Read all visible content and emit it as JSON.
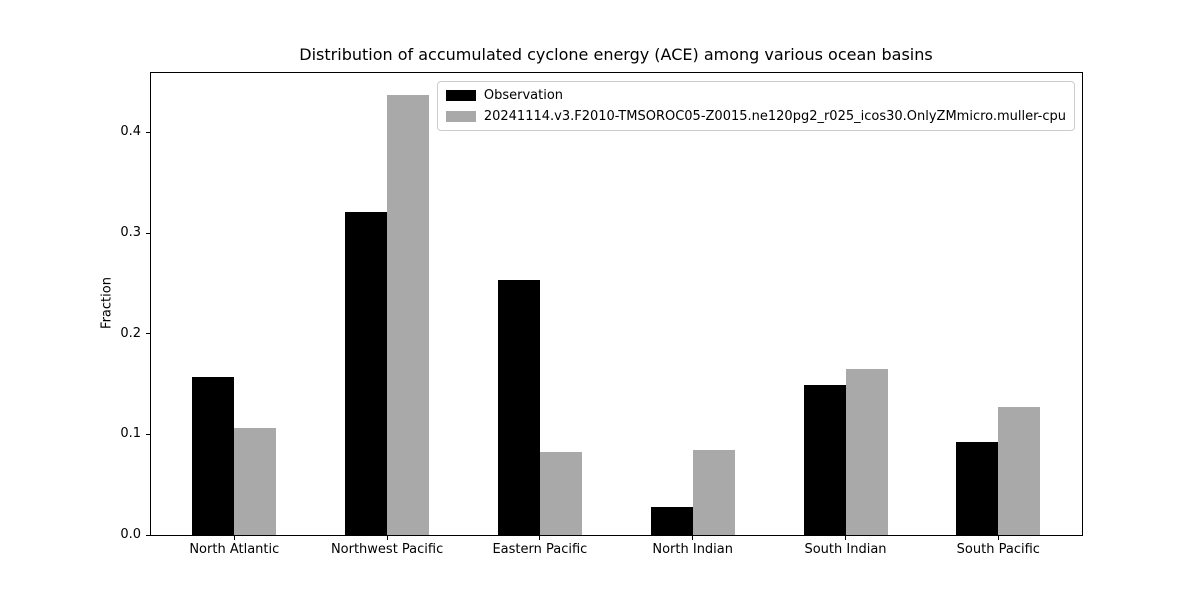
{
  "chart_data": {
    "type": "bar",
    "title": "Distribution of accumulated cyclone energy (ACE) among various ocean basins",
    "xlabel": "",
    "ylabel": "Fraction",
    "categories": [
      "North Atlantic",
      "Northwest Pacific",
      "Eastern Pacific",
      "North Indian",
      "South Indian",
      "South Pacific"
    ],
    "series": [
      {
        "name": "Observation",
        "color": "#000000",
        "values": [
          0.157,
          0.321,
          0.253,
          0.028,
          0.149,
          0.092
        ]
      },
      {
        "name": "20241114.v3.F2010-TMSOROC05-Z0015.ne120pg2_r025_icos30.OnlyZMmicro.muller-cpu",
        "color": "#a9a9a9",
        "values": [
          0.106,
          0.437,
          0.082,
          0.084,
          0.165,
          0.127
        ]
      }
    ],
    "yticks": [
      0,
      0.1,
      0.2,
      0.3,
      0.4
    ],
    "ylim": [
      0,
      0.459
    ],
    "grid": false,
    "legend_position": "upper right inside axes",
    "bar_width_fraction": 0.275
  },
  "colors": {
    "background": "#ffffff",
    "axis": "#000000",
    "legend_border": "#cccccc"
  }
}
